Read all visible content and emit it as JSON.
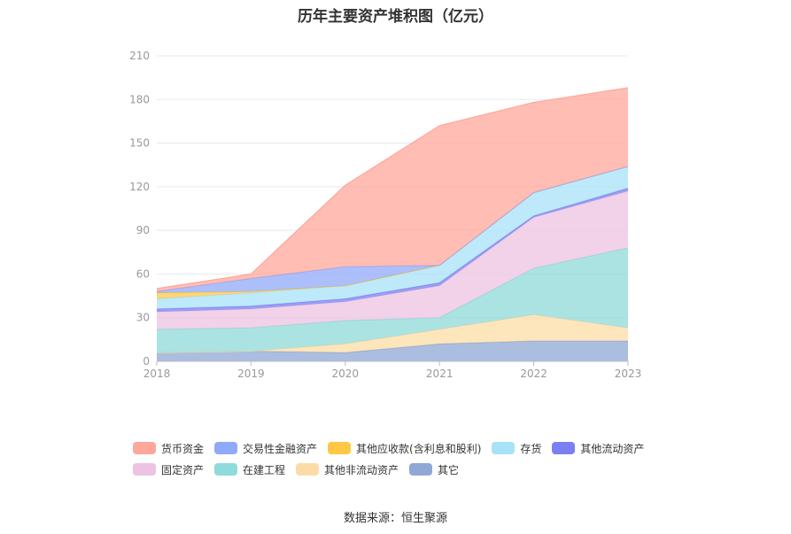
{
  "chart_data": {
    "type": "area",
    "stacked": true,
    "title": "历年主要资产堆积图（亿元）",
    "categories": [
      "2018",
      "2019",
      "2020",
      "2021",
      "2022",
      "2023"
    ],
    "y_ticks": [
      "0",
      "30",
      "60",
      "90",
      "120",
      "150",
      "180",
      "210"
    ],
    "ylim": [
      0,
      210
    ],
    "grid": true,
    "legend_position": "bottom",
    "series": [
      {
        "name": "其它",
        "color": "#8fa8d6",
        "values": [
          6,
          7,
          6,
          12,
          14,
          14
        ]
      },
      {
        "name": "其他非流动资产",
        "color": "#fcdca6",
        "values": [
          0,
          0,
          6,
          10,
          18,
          9
        ]
      },
      {
        "name": "在建工程",
        "color": "#8fdada",
        "values": [
          16,
          16,
          16,
          8,
          32,
          55
        ]
      },
      {
        "name": "固定资产",
        "color": "#ecc3e2",
        "values": [
          12,
          13,
          13,
          22,
          35,
          39
        ]
      },
      {
        "name": "其他流动资产",
        "color": "#7b7ff2",
        "values": [
          2,
          2,
          2,
          2,
          1,
          2
        ]
      },
      {
        "name": "存货",
        "color": "#a8e2fa",
        "values": [
          7,
          9,
          9,
          12,
          16,
          15
        ]
      },
      {
        "name": "其他应收款(含利息和股利)",
        "color": "#fec844",
        "values": [
          4,
          1,
          0,
          0,
          0,
          0
        ]
      },
      {
        "name": "交易性金融资产",
        "color": "#91a9f9",
        "values": [
          1,
          9,
          13,
          0,
          0,
          0
        ]
      },
      {
        "name": "货币资金",
        "color": "#ffa79b",
        "values": [
          2,
          3,
          56,
          96,
          62,
          54
        ]
      }
    ]
  },
  "legend": {
    "row1": [
      {
        "label": "货币资金",
        "color": "#ffa79b"
      },
      {
        "label": "交易性金融资产",
        "color": "#91a9f9"
      },
      {
        "label": "其他应收款(含利息和股利)",
        "color": "#fec844"
      },
      {
        "label": "存货",
        "color": "#a8e2fa"
      },
      {
        "label": "其他流动资产",
        "color": "#7b7ff2"
      }
    ],
    "row2": [
      {
        "label": "固定资产",
        "color": "#ecc3e2"
      },
      {
        "label": "在建工程",
        "color": "#8fdada"
      },
      {
        "label": "其他非流动资产",
        "color": "#fcdca6"
      },
      {
        "label": "其它",
        "color": "#8fa8d6"
      }
    ]
  },
  "source": "数据来源：恒生聚源"
}
